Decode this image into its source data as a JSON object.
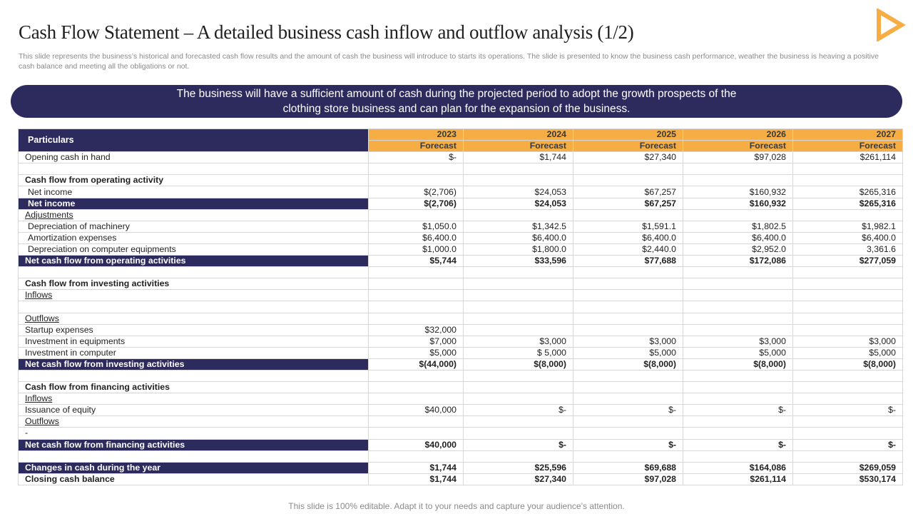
{
  "title": "Cash Flow Statement – A detailed business cash inflow and outflow analysis (1/2)",
  "subtitle": "This slide represents the business’s historical and forecasted cash flow results and the amount of cash the business will introduce to starts its operations. The slide is presented to know the business cash performance, weather the business is heaving a positive cash balance and meeting all the obligations or not.",
  "banner": "The business will have a sufficient amount of cash during the projected period to adopt the growth prospects of the clothing store business and can plan for the expansion of the business.",
  "logo_icon": "play-triangle-icon",
  "colors": {
    "navy": "#2d2b5e",
    "orange": "#f6ad43"
  },
  "table": {
    "particulars_label": "Particulars",
    "years": [
      "2023",
      "2024",
      "2025",
      "2026",
      "2027"
    ],
    "year_sub": [
      "Forecast",
      "Forecast",
      "Forecast",
      "Forecast",
      "Forecast"
    ],
    "rows": [
      {
        "label": "Opening cash in hand",
        "values": [
          "$-",
          "$1,744",
          "$27,340",
          "$97,028",
          "$261,114"
        ]
      },
      {
        "label": "",
        "values": [
          "",
          "",
          "",
          "",
          ""
        ]
      },
      {
        "label": "Cash flow from operating activity",
        "values": [
          "",
          "",
          "",
          "",
          ""
        ]
      },
      {
        "label": "Net income",
        "values": [
          "$(2,706)",
          "$24,053",
          "$67,257",
          "$160,932",
          "$265,316"
        ]
      },
      {
        "label": "Net income",
        "values": [
          "$(2,706)",
          "$24,053",
          "$67,257",
          "$160,932",
          "$265,316"
        ]
      },
      {
        "label": "Adjustments",
        "values": [
          "",
          "",
          "",
          "",
          ""
        ]
      },
      {
        "label": "Depreciation of machinery",
        "values": [
          "$1,050.0",
          "$1,342.5",
          "$1,591.1",
          "$1,802.5",
          "$1,982.1"
        ]
      },
      {
        "label": "Amortization expenses",
        "values": [
          "$6,400.0",
          "$6,400.0",
          "$6,400.0",
          "$6,400.0",
          "$6,400.0"
        ]
      },
      {
        "label": "Depreciation on computer equipments",
        "values": [
          "$1,000.0",
          "$1,800.0",
          "$2,440.0",
          "$2,952.0",
          "3,361.6"
        ]
      },
      {
        "label": "Net cash flow from operating activities",
        "values": [
          "$5,744",
          "$33,596",
          "$77,688",
          "$172,086",
          "$277,059"
        ]
      },
      {
        "label": "",
        "values": [
          "",
          "",
          "",
          "",
          ""
        ]
      },
      {
        "label": "Cash flow from investing activities",
        "values": [
          "",
          "",
          "",
          "",
          ""
        ]
      },
      {
        "label": "Inflows",
        "values": [
          "",
          "",
          "",
          "",
          ""
        ]
      },
      {
        "label": "",
        "values": [
          "",
          "",
          "",
          "",
          ""
        ]
      },
      {
        "label": "Outflows",
        "values": [
          "",
          "",
          "",
          "",
          ""
        ]
      },
      {
        "label": "Startup expenses",
        "values": [
          "$32,000",
          "",
          "",
          "",
          ""
        ]
      },
      {
        "label": "Investment in equipments",
        "values": [
          "$7,000",
          "$3,000",
          "$3,000",
          "$3,000",
          "$3,000"
        ]
      },
      {
        "label": "Investment in computer",
        "values": [
          "$5,000",
          "$ 5,000",
          "$5,000",
          "$5,000",
          "$5,000"
        ]
      },
      {
        "label": "Net cash flow from investing activities",
        "values": [
          "$(44,000)",
          "$(8,000)",
          "$(8,000)",
          "$(8,000)",
          "$(8,000)"
        ]
      },
      {
        "label": "",
        "values": [
          "",
          "",
          "",
          "",
          ""
        ]
      },
      {
        "label": "Cash flow from financing activities",
        "values": [
          "",
          "",
          "",
          "",
          ""
        ]
      },
      {
        "label": "Inflows",
        "values": [
          "",
          "",
          "",
          "",
          ""
        ]
      },
      {
        "label": "Issuance of equity",
        "values": [
          "$40,000",
          "$-",
          "$-",
          "$-",
          "$-"
        ]
      },
      {
        "label": "Outflows",
        "values": [
          "",
          "",
          "",
          "",
          ""
        ]
      },
      {
        "label": "-",
        "values": [
          "",
          "",
          "",
          "",
          ""
        ]
      },
      {
        "label": "Net cash flow from financing activities",
        "values": [
          "$40,000",
          "$-",
          "$-",
          "$-",
          "$-"
        ]
      },
      {
        "label": "",
        "values": [
          "",
          "",
          "",
          "",
          ""
        ]
      },
      {
        "label": "Changes in cash during the year",
        "values": [
          "$1,744",
          "$25,596",
          "$69,688",
          "$164,086",
          "$269,059"
        ]
      },
      {
        "label": "Closing cash balance",
        "values": [
          "$1,744",
          "$27,340",
          "$97,028",
          "$261,114",
          "$530,174"
        ]
      }
    ]
  },
  "footer": "This slide is 100% editable. Adapt it to your needs and capture your audience’s attention."
}
